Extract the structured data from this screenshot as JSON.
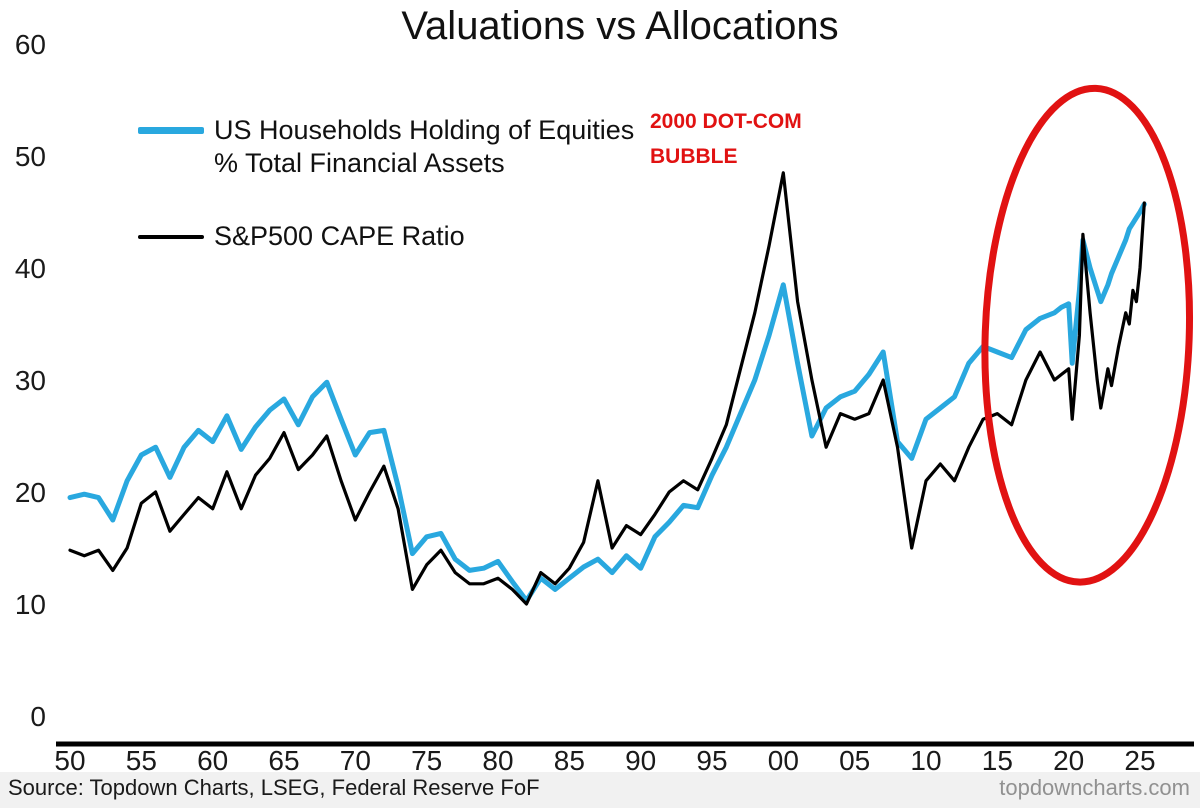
{
  "title": "Valuations vs Allocations",
  "legend": {
    "series1_line1": "US Households Holding of Equities",
    "series1_line2": "% Total Financial Assets",
    "series2_label": "S&P500 CAPE Ratio"
  },
  "annotation": {
    "line1": "2000 DOT-COM",
    "line2": "BUBBLE"
  },
  "footer": {
    "source": "Source: Topdown Charts, LSEG, Federal Reserve FoF",
    "watermark": "topdowncharts.com"
  },
  "colors": {
    "households_line": "#29a8df",
    "cape_line": "#000000",
    "annotation_red": "#e11212",
    "watermark_gray": "#919191",
    "axis_black": "#000000"
  },
  "chart_data": {
    "type": "line",
    "title": "Valuations vs Allocations",
    "grid": false,
    "legend_position": "top-left",
    "y_axis": {
      "label": "",
      "range": [
        0,
        60
      ],
      "ticks": [
        0,
        10,
        20,
        30,
        40,
        50,
        60
      ]
    },
    "x_axis": {
      "label": "",
      "range": [
        1950,
        2025.5
      ],
      "ticks": [
        1950,
        1955,
        1960,
        1965,
        1970,
        1975,
        1980,
        1985,
        1990,
        1995,
        2000,
        2005,
        2010,
        2015,
        2020,
        2025
      ],
      "tick_labels": [
        "50",
        "55",
        "60",
        "65",
        "70",
        "75",
        "80",
        "85",
        "90",
        "95",
        "00",
        "05",
        "10",
        "15",
        "20",
        "25"
      ]
    },
    "x": [
      1950,
      1951,
      1952,
      1953,
      1954,
      1955,
      1956,
      1957,
      1958,
      1959,
      1960,
      1961,
      1962,
      1963,
      1964,
      1965,
      1966,
      1967,
      1968,
      1969,
      1970,
      1971,
      1972,
      1973,
      1974,
      1975,
      1976,
      1977,
      1978,
      1979,
      1980,
      1981,
      1982,
      1983,
      1984,
      1985,
      1986,
      1987,
      1988,
      1989,
      1990,
      1991,
      1992,
      1993,
      1994,
      1995,
      1996,
      1997,
      1998,
      1999,
      2000,
      2001,
      2002,
      2003,
      2004,
      2005,
      2006,
      2007,
      2008,
      2009,
      2010,
      2011,
      2012,
      2013,
      2014,
      2015,
      2016,
      2017,
      2018,
      2019,
      2019.5,
      2020,
      2020.25,
      2020.75,
      2021,
      2021.5,
      2022,
      2022.25,
      2022.75,
      2023,
      2023.5,
      2024,
      2024.25,
      2024.5,
      2024.75,
      2025,
      2025.3
    ],
    "series": [
      {
        "name": "US Households Holding of Equities % Total Financial Assets",
        "color": "#29a8df",
        "values": [
          19.5,
          19.8,
          19.5,
          17.5,
          21.0,
          23.3,
          24.0,
          21.3,
          24.0,
          25.5,
          24.5,
          26.8,
          23.8,
          25.8,
          27.3,
          28.3,
          26.0,
          28.5,
          29.8,
          26.5,
          23.3,
          25.3,
          25.5,
          20.5,
          14.5,
          16.0,
          16.3,
          14.0,
          13.0,
          13.2,
          13.8,
          12.0,
          10.3,
          12.3,
          11.3,
          12.3,
          13.3,
          14.0,
          12.8,
          14.3,
          13.2,
          16.0,
          17.3,
          18.8,
          18.6,
          21.5,
          24.0,
          27.0,
          30.0,
          34.0,
          38.5,
          31.5,
          25.0,
          27.5,
          28.5,
          29.0,
          30.5,
          32.5,
          24.5,
          23.0,
          26.5,
          27.5,
          28.5,
          31.5,
          33.0,
          32.5,
          32.0,
          34.5,
          35.5,
          36.0,
          36.5,
          36.8,
          31.5,
          38.0,
          42.5,
          40.0,
          38.0,
          37.0,
          38.5,
          39.5,
          41.0,
          42.5,
          43.5,
          44.0,
          44.5,
          45.0,
          45.7
        ]
      },
      {
        "name": "S&P500 CAPE Ratio",
        "color": "#000000",
        "values": [
          14.8,
          14.3,
          14.8,
          13.0,
          15.0,
          19.0,
          20.0,
          16.5,
          18.0,
          19.5,
          18.5,
          21.8,
          18.5,
          21.5,
          23.0,
          25.3,
          22.0,
          23.3,
          25.0,
          21.0,
          17.5,
          20.0,
          22.3,
          18.5,
          11.3,
          13.5,
          14.8,
          12.8,
          11.8,
          11.8,
          12.3,
          11.3,
          10.0,
          12.8,
          11.8,
          13.2,
          15.5,
          21.0,
          15.0,
          17.0,
          16.2,
          18.0,
          20.0,
          21.0,
          20.2,
          23.0,
          26.0,
          31.0,
          36.0,
          42.0,
          48.5,
          37.0,
          30.0,
          24.0,
          27.0,
          26.5,
          27.0,
          30.0,
          24.0,
          15.0,
          21.0,
          22.5,
          21.0,
          24.0,
          26.5,
          27.0,
          26.0,
          30.0,
          32.5,
          30.0,
          30.5,
          31.0,
          26.5,
          34.0,
          43.0,
          36.0,
          30.0,
          27.5,
          31.0,
          29.5,
          33.0,
          36.0,
          35.0,
          38.0,
          37.0,
          40.0,
          45.8
        ]
      }
    ],
    "annotations": [
      {
        "type": "text",
        "text": "2000 DOT-COM BUBBLE",
        "x": 1996,
        "y": 52,
        "color": "#e11212"
      },
      {
        "type": "ellipse",
        "x_center": 2021.3,
        "y_center": 34,
        "color": "#e11212"
      }
    ]
  }
}
